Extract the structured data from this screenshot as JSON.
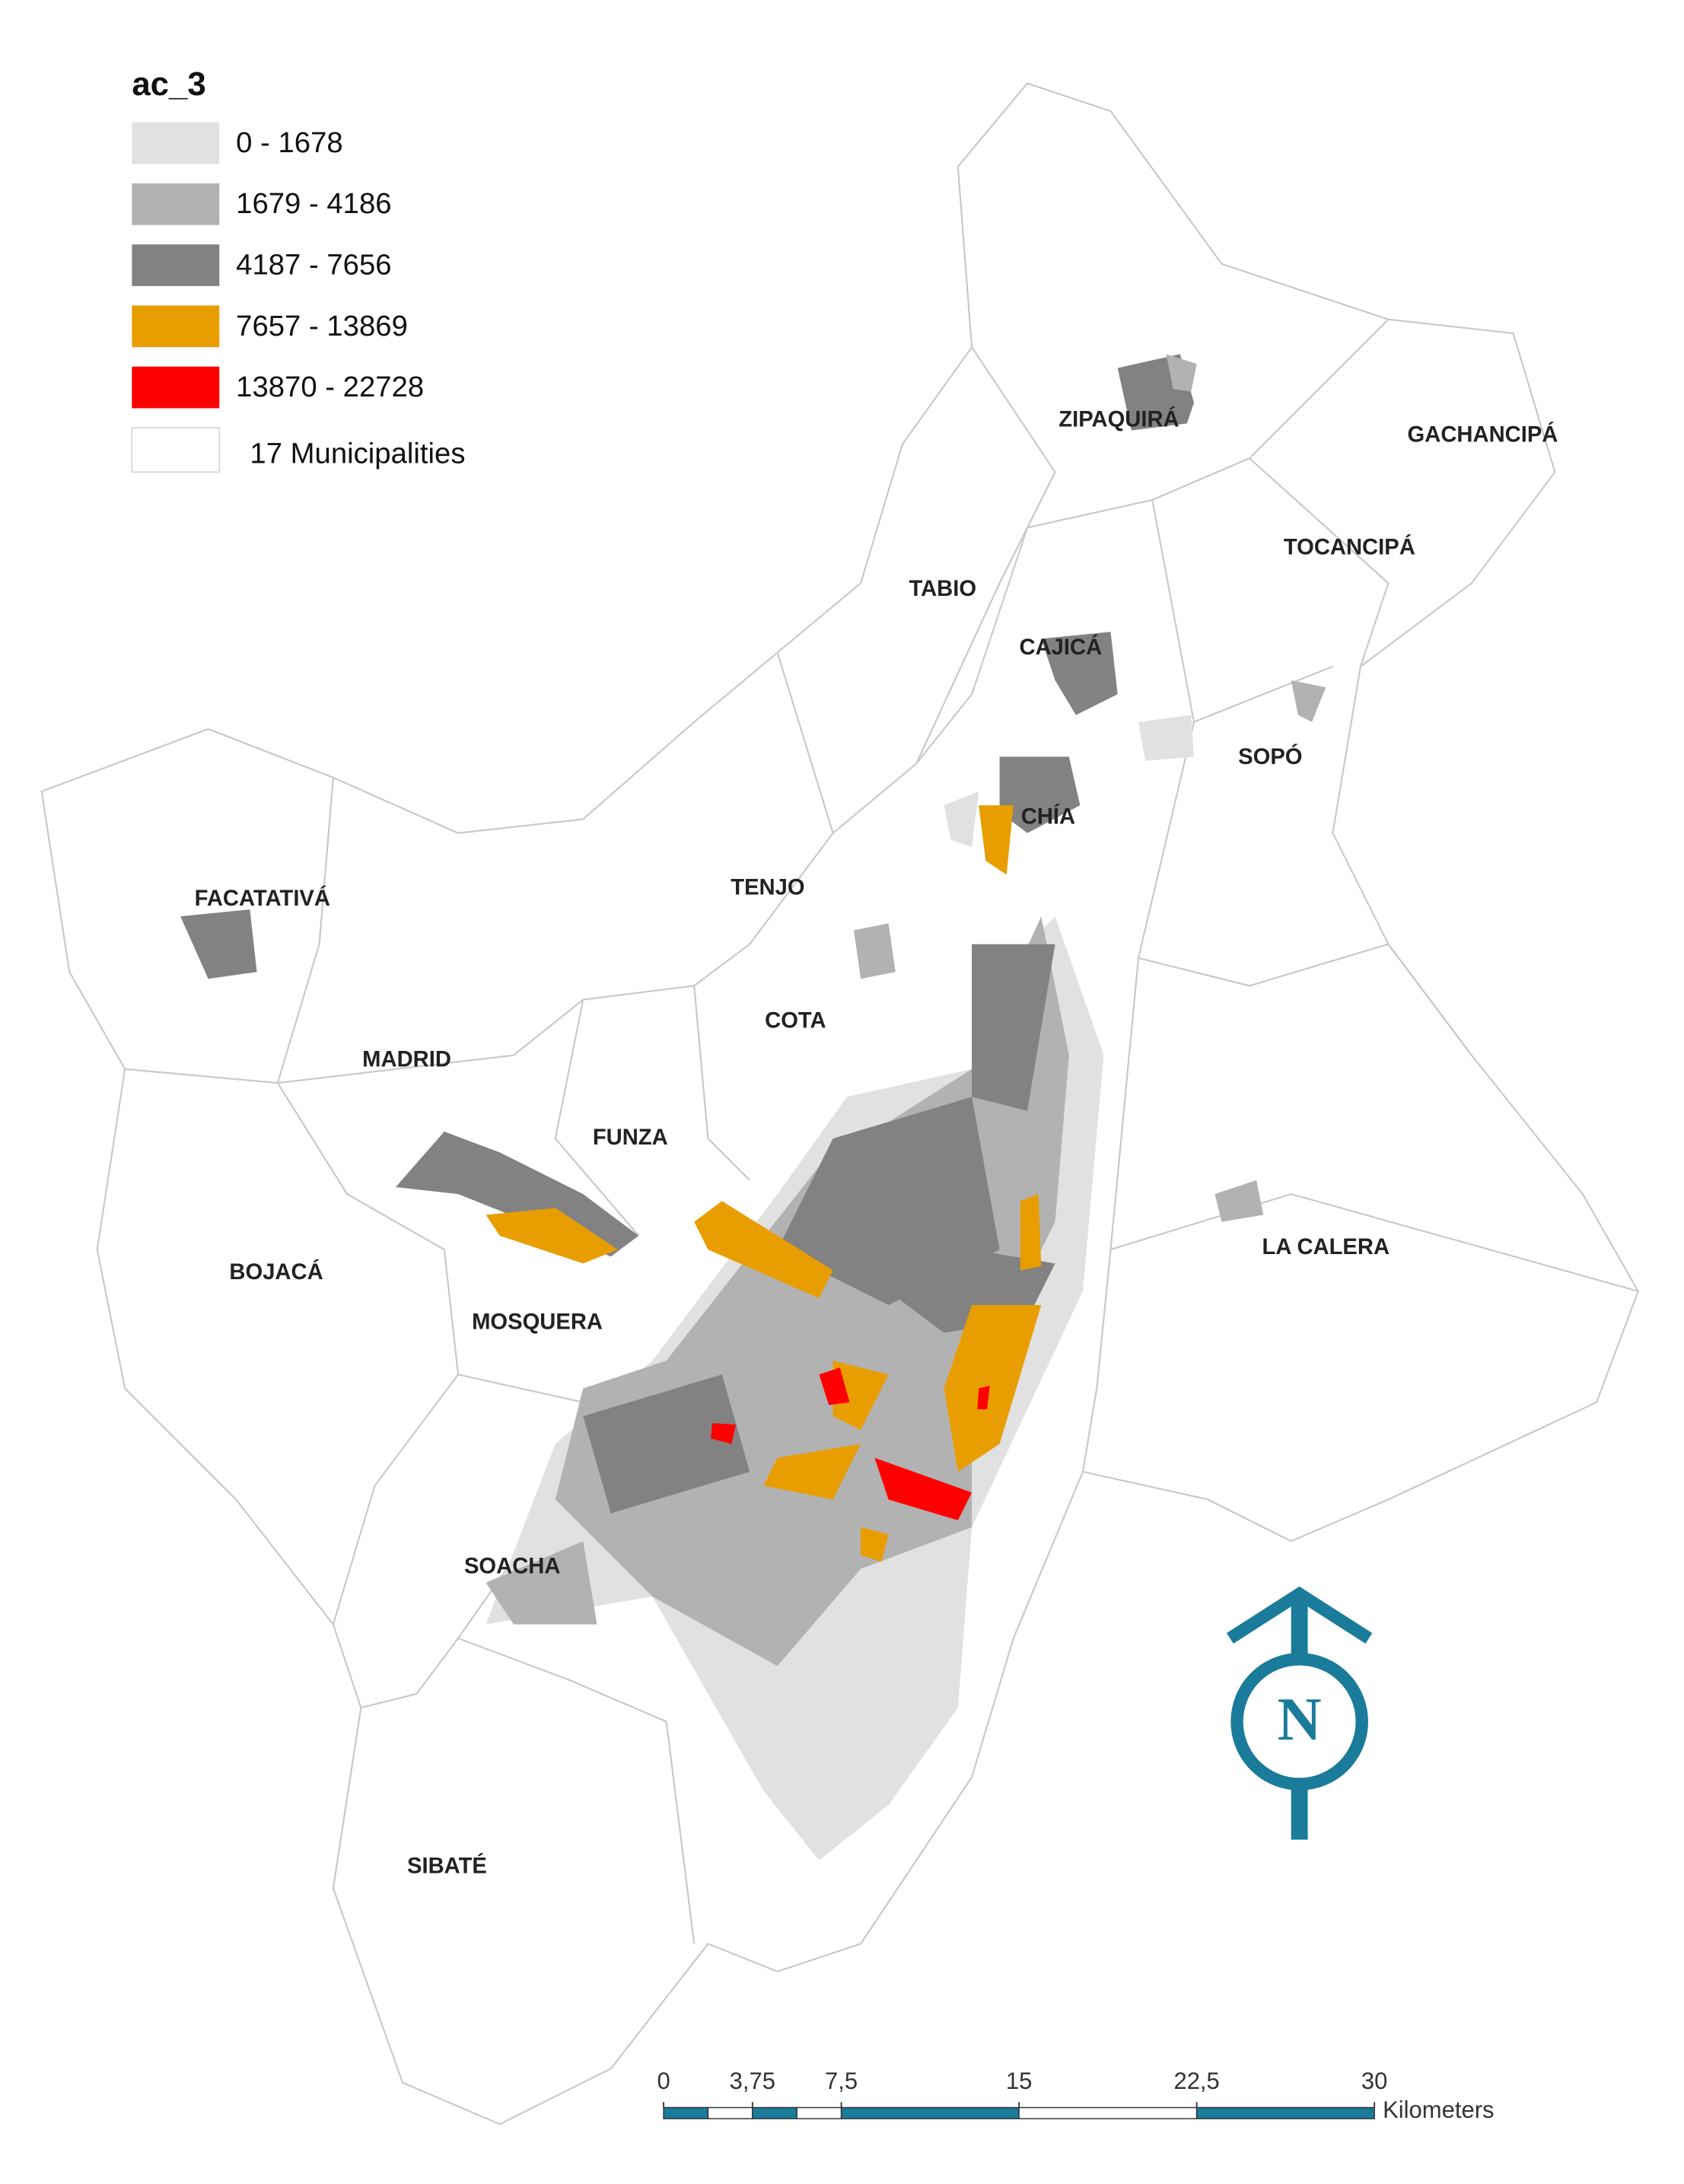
{
  "legend": {
    "title": "ac_3",
    "items": [
      {
        "label": "0 - 1678",
        "color": "#e1e1e1"
      },
      {
        "label": "1679 - 4186",
        "color": "#b2b2b2"
      },
      {
        "label": "4187 - 7656",
        "color": "#828282"
      },
      {
        "label": "7657 - 13869",
        "color": "#e89e00"
      },
      {
        "label": "13870 - 22728",
        "color": "#ff0000"
      }
    ],
    "boundary_label": "17 Municipalities"
  },
  "municipalities": [
    "ZIPAQUIRÁ",
    "GACHANCIPÁ",
    "TOCANCIPÁ",
    "TABIO",
    "CAJICÁ",
    "SOPÓ",
    "CHÍA",
    "FACATATIVÁ",
    "TENJO",
    "COTA",
    "MADRID",
    "FUNZA",
    "LA CALERA",
    "BOJACÁ",
    "MOSQUERA",
    "SOACHA",
    "SIBATÉ"
  ],
  "north_arrow": {
    "label": "N",
    "color": "#1a7b9a"
  },
  "scale_bar": {
    "ticks": [
      0,
      {
        "value": 3.75,
        "label": "3,75"
      },
      {
        "value": 7.5,
        "label": "7,5"
      },
      15,
      {
        "value": 22.5,
        "label": "22,5"
      },
      30
    ],
    "unit": "Kilometers",
    "color": "#1a7b9a"
  }
}
